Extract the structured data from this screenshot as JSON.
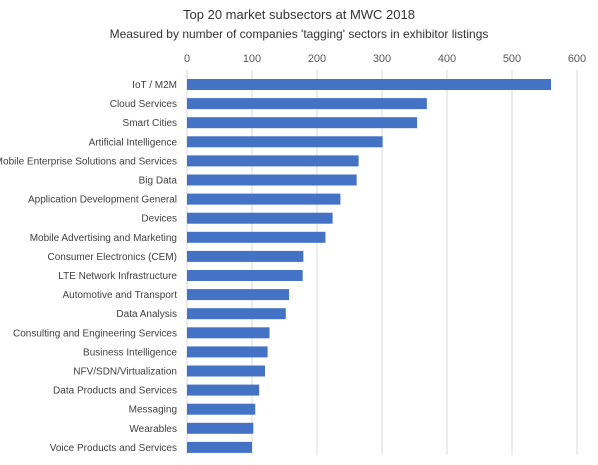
{
  "chart_data": {
    "type": "bar",
    "orientation": "horizontal",
    "title": "Top 20 market subsectors at MWC 2018",
    "subtitle": "Measured by number of companies 'tagging' sectors in exhibitor listings",
    "xlabel": "",
    "ylabel": "",
    "xlim": [
      0,
      600
    ],
    "x_ticks": [
      0,
      100,
      200,
      300,
      400,
      500,
      600
    ],
    "x_axis_position": "top",
    "grid": "vertical",
    "legend": "none",
    "bar_color": "#4472c4",
    "categories": [
      "IoT / M2M",
      "Cloud Services",
      "Smart Cities",
      "Artificial Intelligence",
      "Mobile Enterprise Solutions and Services",
      "Big Data",
      "Application Development General",
      "Devices",
      "Mobile Advertising and Marketing",
      "Consumer Electronics (CEM)",
      "LTE Network Infrastructure",
      "Automotive and Transport",
      "Data Analysis",
      "Consulting and Engineering Services",
      "Business Intelligence",
      "NFV/SDN/Virtualization",
      "Data Products and Services",
      "Messaging",
      "Wearables",
      "Voice Products and Services"
    ],
    "values": [
      560,
      369,
      354,
      301,
      264,
      261,
      236,
      224,
      213,
      179,
      178,
      157,
      152,
      127,
      124,
      120,
      111,
      105,
      102,
      100
    ]
  }
}
